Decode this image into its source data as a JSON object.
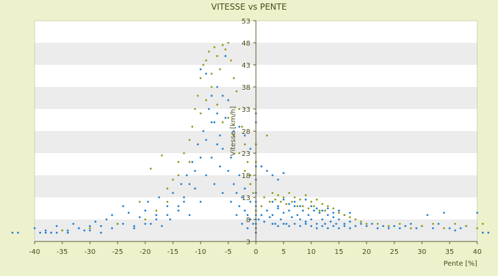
{
  "chart_data": {
    "type": "scatter",
    "title": "VITESSE vs PENTE",
    "xlabel": "Pente [%]",
    "ylabel": "Vitesse [km/h]",
    "xlim": [
      -40,
      40
    ],
    "ylim": [
      3,
      53
    ],
    "xticks": [
      "-40",
      "-35",
      "-30",
      "-25",
      "-20",
      "-15",
      "-10",
      "-5",
      "0",
      "5",
      "10",
      "15",
      "20",
      "25",
      "30",
      "35",
      "40"
    ],
    "yticks": [
      "3",
      "8",
      "13",
      "18",
      "23",
      "28",
      "33",
      "38",
      "43",
      "48",
      "53"
    ],
    "legend": "none",
    "grid": "horizontal alternating bands",
    "colors": {
      "band_light": "#ffffff",
      "band_dark": "#ececec",
      "series_blue": "#1f7fd0",
      "series_olive": "#8f9a12"
    },
    "series": [
      {
        "color": "#1f7fd0",
        "points": [
          [
            -44,
            5
          ],
          [
            -43,
            5
          ],
          [
            -40,
            6
          ],
          [
            -38,
            5
          ],
          [
            -37,
            5
          ],
          [
            -36,
            6.5
          ],
          [
            -35,
            5.5
          ],
          [
            -34,
            5
          ],
          [
            -33,
            7
          ],
          [
            -32,
            6
          ],
          [
            -31,
            5.5
          ],
          [
            -30,
            6.5
          ],
          [
            -29,
            7.5
          ],
          [
            -28,
            5
          ],
          [
            -27,
            8
          ],
          [
            -26,
            9
          ],
          [
            -25,
            7
          ],
          [
            -24,
            11
          ],
          [
            -23,
            9.5
          ],
          [
            -22,
            6
          ],
          [
            -21,
            8.5
          ],
          [
            -20,
            10
          ],
          [
            -19.5,
            12
          ],
          [
            -19,
            7
          ],
          [
            -18,
            9
          ],
          [
            -17.5,
            13
          ],
          [
            -17,
            6.5
          ],
          [
            -16,
            11
          ],
          [
            -15.5,
            8
          ],
          [
            -15,
            14
          ],
          [
            -14,
            10
          ],
          [
            -13.5,
            16
          ],
          [
            -13,
            12
          ],
          [
            -12.5,
            18
          ],
          [
            -12,
            9
          ],
          [
            -11.5,
            21
          ],
          [
            -11,
            15
          ],
          [
            -10.5,
            25
          ],
          [
            -10,
            12
          ],
          [
            -10,
            42
          ],
          [
            -9.5,
            28
          ],
          [
            -9,
            18
          ],
          [
            -9,
            41
          ],
          [
            -8.5,
            33
          ],
          [
            -8,
            22
          ],
          [
            -8,
            36
          ],
          [
            -7.5,
            16
          ],
          [
            -7.5,
            30
          ],
          [
            -7,
            25
          ],
          [
            -7,
            38
          ],
          [
            -6.5,
            20
          ],
          [
            -6.5,
            27
          ],
          [
            -6,
            14
          ],
          [
            -6,
            24
          ],
          [
            -5.5,
            45
          ],
          [
            -5.5,
            31
          ],
          [
            -5,
            19
          ],
          [
            -5,
            35
          ],
          [
            -4.5,
            12
          ],
          [
            -4.5,
            22
          ],
          [
            -4,
            16
          ],
          [
            -4,
            28
          ],
          [
            -3.5,
            9
          ],
          [
            -3.5,
            14
          ],
          [
            -3,
            11
          ],
          [
            -3,
            18
          ],
          [
            -2.5,
            7
          ],
          [
            -2.5,
            13
          ],
          [
            -2,
            10
          ],
          [
            -2,
            15
          ],
          [
            -1.5,
            6
          ],
          [
            -1.5,
            9
          ],
          [
            -1,
            8
          ],
          [
            -1,
            12
          ],
          [
            -0.5,
            7
          ],
          [
            0,
            5
          ],
          [
            0,
            6
          ],
          [
            0,
            7
          ],
          [
            0,
            8
          ],
          [
            0,
            9
          ],
          [
            0,
            10
          ],
          [
            0,
            11
          ],
          [
            0,
            12
          ],
          [
            0,
            14
          ],
          [
            0,
            17
          ],
          [
            0,
            20
          ],
          [
            0,
            30
          ],
          [
            0,
            32
          ],
          [
            0.5,
            8
          ],
          [
            1,
            9
          ],
          [
            1.5,
            7.5
          ],
          [
            2,
            10
          ],
          [
            2.5,
            8.5
          ],
          [
            3,
            9
          ],
          [
            3.5,
            7
          ],
          [
            4,
            10.5
          ],
          [
            4.5,
            8
          ],
          [
            5,
            9.5
          ],
          [
            5.5,
            7
          ],
          [
            6,
            10
          ],
          [
            6.5,
            8.5
          ],
          [
            7,
            11
          ],
          [
            7.5,
            9
          ],
          [
            8,
            8
          ],
          [
            8.5,
            10
          ],
          [
            9,
            7.5
          ],
          [
            9.5,
            9
          ],
          [
            10,
            8
          ],
          [
            10.5,
            10
          ],
          [
            11,
            7
          ],
          [
            11.5,
            9.5
          ],
          [
            12,
            8
          ],
          [
            12.5,
            7
          ],
          [
            13,
            9
          ],
          [
            13.5,
            7.5
          ],
          [
            14,
            8.5
          ],
          [
            14.5,
            7
          ],
          [
            15,
            8
          ],
          [
            16,
            7
          ],
          [
            17,
            7.5
          ],
          [
            18,
            6.5
          ],
          [
            19,
            7
          ],
          [
            20,
            6.5
          ],
          [
            21,
            7
          ],
          [
            22,
            6
          ],
          [
            23,
            6.5
          ],
          [
            24,
            6
          ],
          [
            25,
            6.5
          ],
          [
            26,
            6
          ],
          [
            27,
            6.5
          ],
          [
            28,
            7
          ],
          [
            29,
            6
          ],
          [
            30,
            6.5
          ],
          [
            31,
            9
          ],
          [
            32,
            6
          ],
          [
            33,
            7
          ],
          [
            34,
            9.5
          ],
          [
            35,
            6
          ],
          [
            36,
            5.5
          ],
          [
            37,
            6
          ],
          [
            38,
            6.5
          ],
          [
            40,
            9.5
          ],
          [
            41,
            5
          ],
          [
            42,
            5
          ],
          [
            2,
            19
          ],
          [
            3,
            18
          ],
          [
            4,
            17
          ],
          [
            5,
            18.5
          ],
          [
            1,
            20
          ],
          [
            -1,
            24
          ],
          [
            -2,
            27
          ],
          [
            -3,
            29
          ],
          [
            -6,
            36
          ],
          [
            -7,
            32
          ],
          [
            -8,
            30
          ],
          [
            -9,
            26
          ],
          [
            -10,
            22
          ],
          [
            -11,
            19
          ],
          [
            -12,
            16
          ],
          [
            -13,
            13
          ],
          [
            -14,
            11
          ],
          [
            -16,
            9
          ],
          [
            -18,
            8
          ],
          [
            -20,
            7
          ],
          [
            -22,
            6.5
          ],
          [
            -24,
            7
          ],
          [
            -26,
            6
          ],
          [
            -28,
            6.5
          ],
          [
            -30,
            5.5
          ],
          [
            -32,
            6
          ],
          [
            -34,
            5.5
          ],
          [
            -36,
            5
          ],
          [
            -38,
            5.5
          ],
          [
            -39,
            5
          ],
          [
            3,
            12
          ],
          [
            4,
            11
          ],
          [
            5,
            12.5
          ],
          [
            6,
            11.5
          ],
          [
            7,
            12
          ],
          [
            8,
            11
          ],
          [
            9,
            12.5
          ],
          [
            10,
            11
          ],
          [
            11,
            10.5
          ],
          [
            12,
            10
          ],
          [
            13,
            10.5
          ],
          [
            14,
            9.5
          ],
          [
            15,
            10
          ],
          [
            16,
            9
          ],
          [
            17,
            9.5
          ],
          [
            3,
            7
          ],
          [
            4,
            6.5
          ],
          [
            5,
            7
          ],
          [
            6,
            6.5
          ],
          [
            7,
            7
          ],
          [
            8,
            6.5
          ],
          [
            9,
            7
          ],
          [
            10,
            6.5
          ],
          [
            11,
            6
          ],
          [
            12,
            6.5
          ],
          [
            13,
            6
          ],
          [
            14,
            6.5
          ],
          [
            15,
            6
          ],
          [
            16,
            6.5
          ],
          [
            17,
            6
          ]
        ]
      },
      {
        "color": "#8f9a12",
        "points": [
          [
            -35,
            5.5
          ],
          [
            -30,
            6
          ],
          [
            -25,
            7
          ],
          [
            -20,
            8
          ],
          [
            -18,
            10
          ],
          [
            -17,
            22.5
          ],
          [
            -16,
            15
          ],
          [
            -15,
            17
          ],
          [
            -14,
            21
          ],
          [
            -13,
            23
          ],
          [
            -12,
            26
          ],
          [
            -11.5,
            29
          ],
          [
            -11,
            33
          ],
          [
            -10.5,
            36
          ],
          [
            -10,
            40
          ],
          [
            -9.5,
            43
          ],
          [
            -9,
            44
          ],
          [
            -8.5,
            46
          ],
          [
            -8,
            41
          ],
          [
            -7.5,
            47
          ],
          [
            -7,
            45
          ],
          [
            -6.5,
            42
          ],
          [
            -6,
            47.5
          ],
          [
            -5.5,
            46.5
          ],
          [
            -5,
            48
          ],
          [
            -4.5,
            44
          ],
          [
            -4,
            40
          ],
          [
            -3.5,
            37
          ],
          [
            -3,
            33
          ],
          [
            -2.5,
            29
          ],
          [
            -2,
            25
          ],
          [
            -1.5,
            21
          ],
          [
            -1,
            18
          ],
          [
            -0.5,
            14
          ],
          [
            0,
            10
          ],
          [
            0,
            21
          ],
          [
            0,
            25
          ],
          [
            1,
            11
          ],
          [
            1.5,
            13
          ],
          [
            2,
            27
          ],
          [
            2.5,
            12
          ],
          [
            3,
            14
          ],
          [
            3.5,
            12.5
          ],
          [
            4,
            13.5
          ],
          [
            4.5,
            12
          ],
          [
            5,
            13
          ],
          [
            5.5,
            11.5
          ],
          [
            6,
            14
          ],
          [
            6.5,
            12
          ],
          [
            7,
            13
          ],
          [
            7.5,
            11
          ],
          [
            8,
            12.5
          ],
          [
            8.5,
            11
          ],
          [
            9,
            13.5
          ],
          [
            9.5,
            10.5
          ],
          [
            10,
            12
          ],
          [
            10.5,
            11
          ],
          [
            11,
            12.5
          ],
          [
            11.5,
            10
          ],
          [
            12,
            11.5
          ],
          [
            12.5,
            10
          ],
          [
            13,
            11
          ],
          [
            14,
            10.5
          ],
          [
            15,
            9.5
          ],
          [
            16,
            9
          ],
          [
            17,
            8.5
          ],
          [
            18,
            8
          ],
          [
            19,
            7.5
          ],
          [
            20,
            7
          ],
          [
            22,
            7
          ],
          [
            24,
            6.5
          ],
          [
            26,
            7
          ],
          [
            28,
            6
          ],
          [
            30,
            6.5
          ],
          [
            32,
            7
          ],
          [
            34,
            6
          ],
          [
            36,
            7
          ],
          [
            38,
            6.5
          ],
          [
            40,
            6
          ],
          [
            41,
            7
          ],
          [
            -6,
            30
          ],
          [
            -7,
            34
          ],
          [
            -8,
            38
          ],
          [
            -5,
            31
          ],
          [
            -4,
            27
          ],
          [
            -3,
            23
          ],
          [
            -2,
            19
          ],
          [
            -1,
            16
          ],
          [
            -9,
            35
          ],
          [
            -10,
            32
          ],
          [
            -12,
            21
          ],
          [
            -14,
            18
          ],
          [
            -16,
            12
          ],
          [
            -19,
            19.5
          ],
          [
            -21,
            12
          ]
        ]
      }
    ]
  }
}
